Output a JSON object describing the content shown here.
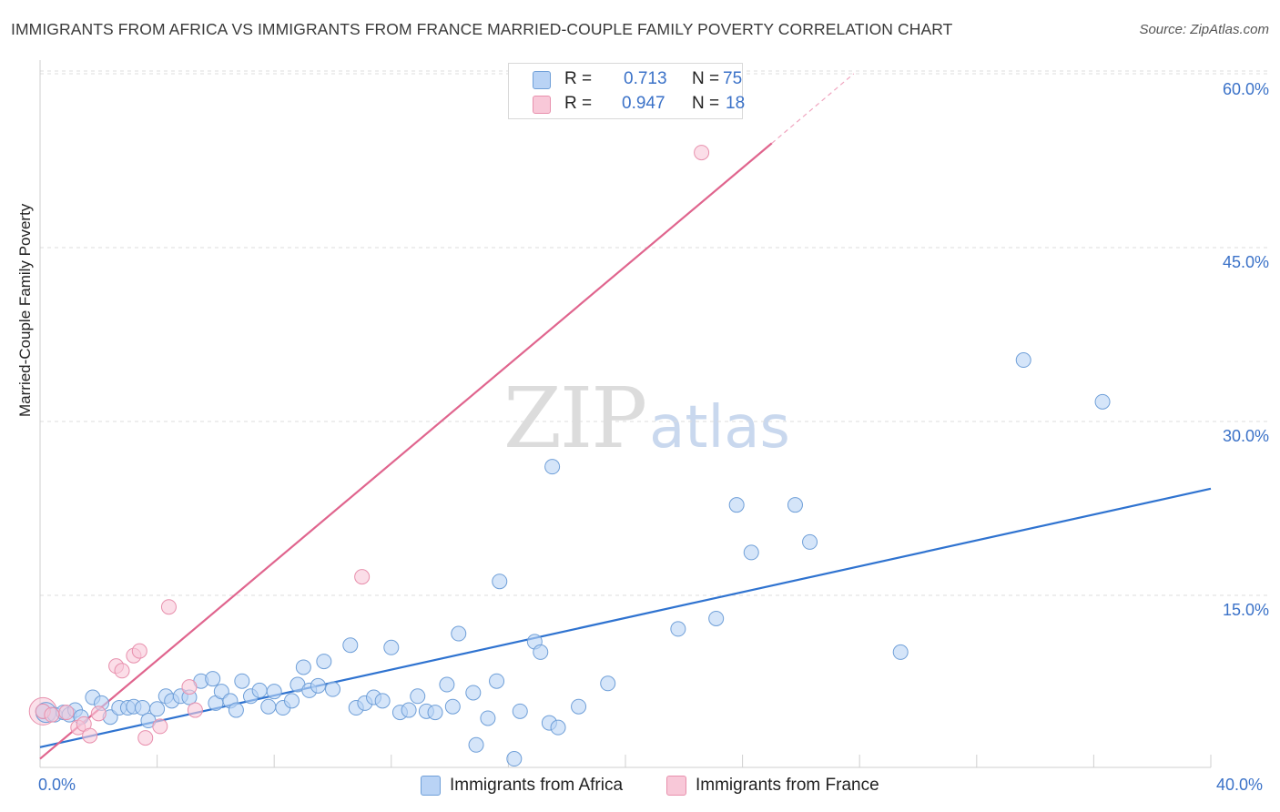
{
  "title": "IMMIGRANTS FROM AFRICA VS IMMIGRANTS FROM FRANCE MARRIED-COUPLE FAMILY POVERTY CORRELATION CHART",
  "source": "Source: ZipAtlas.com",
  "watermark": {
    "zip": "ZIP",
    "atlas": "atlas"
  },
  "colors": {
    "africa_fill": "#b9d3f5",
    "africa_stroke": "#6f9fd8",
    "africa_line": "#2f73d0",
    "france_fill": "#f8c8d8",
    "france_stroke": "#e890ad",
    "france_line": "#e0658e",
    "grid": "#dddddd",
    "tick_text": "#3b72c8"
  },
  "legend": {
    "rows": [
      {
        "r_label": "R =",
        "r_value": "0.713",
        "n_label": "N =",
        "n_value": "75"
      },
      {
        "r_label": "R =",
        "r_value": "0.947",
        "n_label": "N =",
        "n_value": "18"
      }
    ]
  },
  "chart_data": {
    "type": "scatter",
    "title": "IMMIGRANTS FROM AFRICA VS IMMIGRANTS FROM FRANCE MARRIED-COUPLE FAMILY POVERTY CORRELATION CHART",
    "xlabel": "",
    "ylabel": "Married-Couple Family Poverty",
    "xlim": [
      0,
      40
    ],
    "ylim": [
      0,
      62.5
    ],
    "x_tick_labels": [
      "0.0%",
      "40.0%"
    ],
    "y_ticks": [
      15,
      30,
      45,
      60
    ],
    "y_tick_labels": [
      "15.0%",
      "30.0%",
      "45.0%",
      "60.0%"
    ],
    "grid": true,
    "legend_position": "bottom",
    "series": [
      {
        "name": "Immigrants from Africa",
        "color": "#b9d3f5",
        "R": 0.713,
        "N": 75,
        "trend": {
          "x": [
            0,
            40
          ],
          "y": [
            1.9,
            24.2
          ]
        },
        "points": [
          [
            0.1,
            5.0
          ],
          [
            0.5,
            4.7
          ],
          [
            0.8,
            4.9
          ],
          [
            1.0,
            4.7
          ],
          [
            1.2,
            5.1
          ],
          [
            1.4,
            4.5
          ],
          [
            1.8,
            6.2
          ],
          [
            2.1,
            5.7
          ],
          [
            2.4,
            4.5
          ],
          [
            2.7,
            5.3
          ],
          [
            3.0,
            5.3
          ],
          [
            3.2,
            5.4
          ],
          [
            3.5,
            5.3
          ],
          [
            3.7,
            4.2
          ],
          [
            4.0,
            5.2
          ],
          [
            4.3,
            6.3
          ],
          [
            4.5,
            5.9
          ],
          [
            4.8,
            6.3
          ],
          [
            5.1,
            6.2
          ],
          [
            5.5,
            7.6
          ],
          [
            5.9,
            7.8
          ],
          [
            6.0,
            5.7
          ],
          [
            6.2,
            6.7
          ],
          [
            6.5,
            5.9
          ],
          [
            6.7,
            5.1
          ],
          [
            6.9,
            7.6
          ],
          [
            7.2,
            6.3
          ],
          [
            7.5,
            6.8
          ],
          [
            7.8,
            5.4
          ],
          [
            8.0,
            6.7
          ],
          [
            8.3,
            5.3
          ],
          [
            8.6,
            5.9
          ],
          [
            8.8,
            7.3
          ],
          [
            9.0,
            8.8
          ],
          [
            9.2,
            6.8
          ],
          [
            9.5,
            7.2
          ],
          [
            9.7,
            9.3
          ],
          [
            10.0,
            6.9
          ],
          [
            10.6,
            10.7
          ],
          [
            10.8,
            5.3
          ],
          [
            11.1,
            5.7
          ],
          [
            11.4,
            6.2
          ],
          [
            11.7,
            5.9
          ],
          [
            12.0,
            10.5
          ],
          [
            12.3,
            4.9
          ],
          [
            12.6,
            5.1
          ],
          [
            12.9,
            6.3
          ],
          [
            13.2,
            5.0
          ],
          [
            13.5,
            4.9
          ],
          [
            13.9,
            7.3
          ],
          [
            14.1,
            5.4
          ],
          [
            14.3,
            11.7
          ],
          [
            14.8,
            6.6
          ],
          [
            14.9,
            2.1
          ],
          [
            15.3,
            4.4
          ],
          [
            15.6,
            7.6
          ],
          [
            15.7,
            16.2
          ],
          [
            16.2,
            0.9
          ],
          [
            16.4,
            5.0
          ],
          [
            16.9,
            11.0
          ],
          [
            17.1,
            10.1
          ],
          [
            17.4,
            4.0
          ],
          [
            17.5,
            26.1
          ],
          [
            17.7,
            3.6
          ],
          [
            18.4,
            5.4
          ],
          [
            19.4,
            7.4
          ],
          [
            21.8,
            12.1
          ],
          [
            23.1,
            13.0
          ],
          [
            23.8,
            22.8
          ],
          [
            24.3,
            18.7
          ],
          [
            25.8,
            22.8
          ],
          [
            26.3,
            19.6
          ],
          [
            29.4,
            10.1
          ],
          [
            33.6,
            35.3
          ],
          [
            36.3,
            31.7
          ]
        ]
      },
      {
        "name": "Immigrants from France",
        "color": "#f8c8d8",
        "R": 0.947,
        "N": 18,
        "trend": {
          "x": [
            0,
            25.0
          ],
          "y": [
            0.9,
            54.0
          ]
        },
        "trend_dashed": {
          "x": [
            25.0,
            27.8
          ],
          "y": [
            54.0,
            60.0
          ]
        },
        "points": [
          [
            0.1,
            5.0
          ],
          [
            0.4,
            4.7
          ],
          [
            0.9,
            4.9
          ],
          [
            1.3,
            3.6
          ],
          [
            1.5,
            3.9
          ],
          [
            1.7,
            2.9
          ],
          [
            2.0,
            4.8
          ],
          [
            2.6,
            8.9
          ],
          [
            2.8,
            8.5
          ],
          [
            3.2,
            9.8
          ],
          [
            3.4,
            10.2
          ],
          [
            3.6,
            2.7
          ],
          [
            4.1,
            3.7
          ],
          [
            4.4,
            14.0
          ],
          [
            5.1,
            7.1
          ],
          [
            5.3,
            5.1
          ],
          [
            11.0,
            16.6
          ],
          [
            22.6,
            53.2
          ]
        ]
      }
    ]
  }
}
